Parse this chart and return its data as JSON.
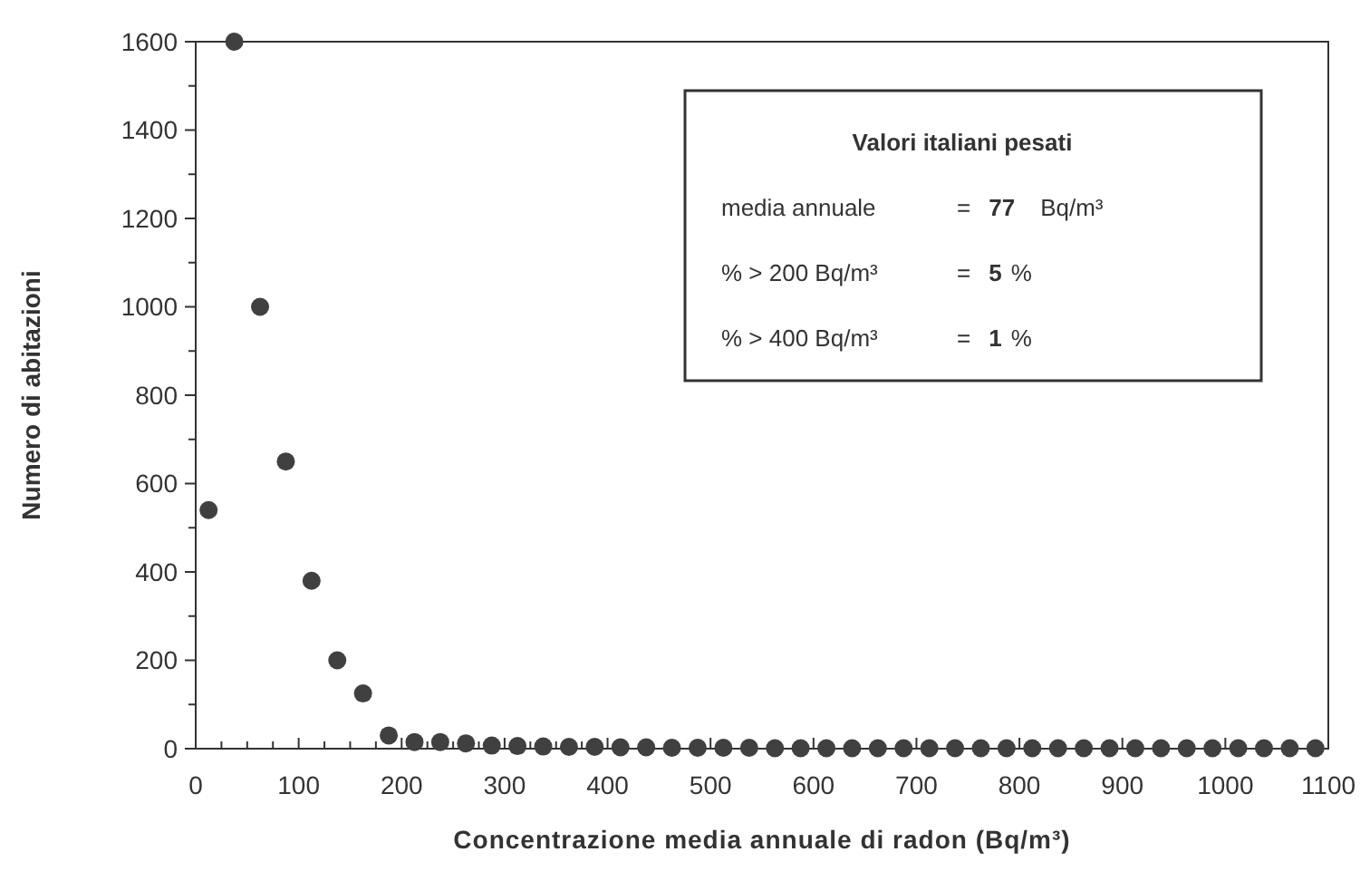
{
  "chart_data": {
    "type": "scatter",
    "xlabel": "Concentrazione media annuale di radon (Bq/m³)",
    "ylabel": "Numero di abitazioni",
    "x": [
      12.5,
      37.5,
      62.5,
      87.5,
      112.5,
      137.5,
      162.5,
      187.5,
      212.5,
      237.5,
      262.5,
      287.5,
      312.5,
      337.5,
      362.5,
      387.5,
      412.5,
      437.5,
      462.5,
      487.5,
      512.5,
      537.5,
      562.5,
      587.5,
      612.5,
      637.5,
      662.5,
      687.5,
      712.5,
      737.5,
      762.5,
      787.5,
      812.5,
      837.5,
      862.5,
      887.5,
      912.5,
      937.5,
      962.5,
      987.5,
      1012.5,
      1037.5,
      1062.5,
      1087.5
    ],
    "series": [
      {
        "color": "#404040",
        "values": [
          540,
          1600,
          1000,
          650,
          380,
          200,
          125,
          30,
          15,
          15,
          12,
          7,
          6,
          5,
          4,
          4,
          3,
          3,
          2,
          2,
          2,
          2,
          1,
          1,
          1,
          1,
          1,
          1,
          1,
          1,
          1,
          1,
          1,
          1,
          1,
          1,
          1,
          1,
          1,
          1,
          1,
          1,
          1,
          1
        ]
      }
    ],
    "marker": "circle",
    "grid": false,
    "xlim": [
      0,
      1100
    ],
    "ylim": [
      0,
      1600
    ],
    "xticks": [
      0,
      {
        "value": 25,
        "label": null
      },
      {
        "value": 50,
        "label": null
      },
      {
        "value": 75,
        "label": null
      },
      100,
      {
        "value": 125,
        "label": null
      },
      {
        "value": 150,
        "label": null
      },
      {
        "value": 175,
        "label": null
      },
      200,
      {
        "value": 225,
        "label": null
      },
      {
        "value": 250,
        "label": null
      },
      {
        "value": 275,
        "label": null
      },
      300,
      {
        "value": 325,
        "label": null
      },
      {
        "value": 350,
        "label": null
      },
      {
        "value": 375,
        "label": null
      },
      400,
      500,
      600,
      700,
      800,
      900,
      1000,
      1100
    ],
    "yticks": [
      0,
      {
        "value": 100,
        "label": null
      },
      200,
      {
        "value": 300,
        "label": null
      },
      400,
      {
        "value": 500,
        "label": null
      },
      600,
      {
        "value": 700,
        "label": null
      },
      800,
      {
        "value": 900,
        "label": null
      },
      1000,
      {
        "value": 1100,
        "label": null
      },
      1200,
      {
        "value": 1300,
        "label": null
      },
      1400,
      {
        "value": 1500,
        "label": null
      },
      1600
    ],
    "annotations": [
      "Valori italiani pesati",
      "media annuale = 77 Bq/m³",
      "% > 200 Bq/m³ = 5 %",
      "% > 400 Bq/m³ = 1 %"
    ]
  }
}
